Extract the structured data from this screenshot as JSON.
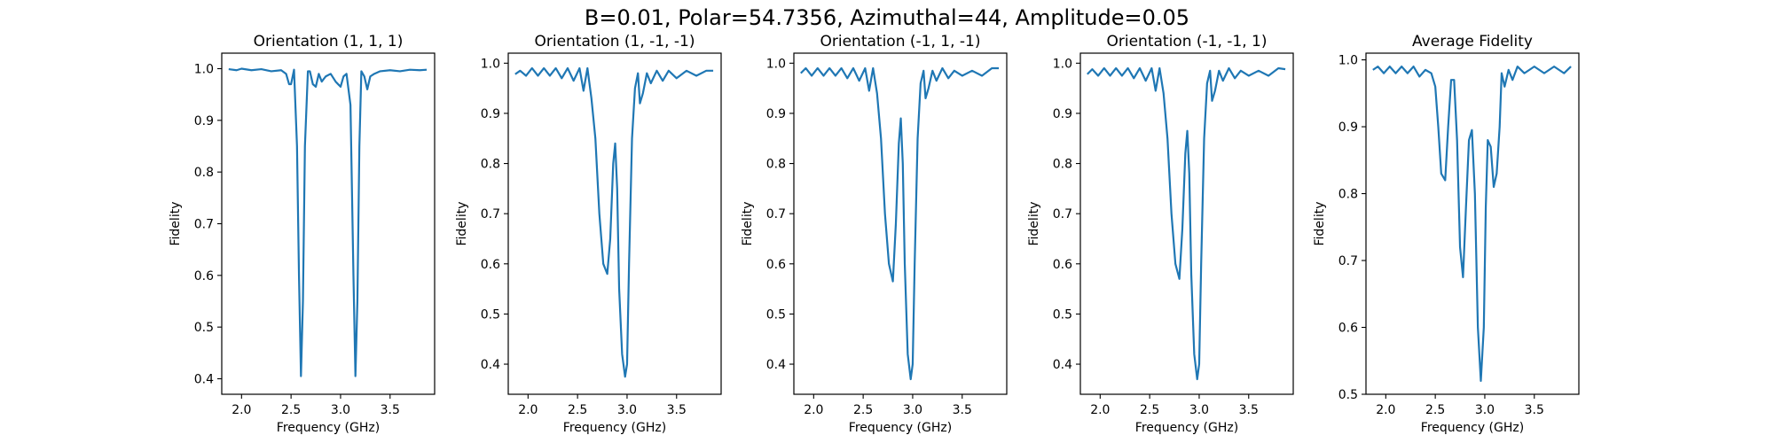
{
  "figure": {
    "suptitle": "B=0.01, Polar=54.7356, Azimuthal=44, Amplitude=0.05",
    "line_color": "#1f77b4"
  },
  "chart_data": [
    {
      "type": "line",
      "title": "Orientation (1, 1, 1)",
      "xlabel": "Frequency (GHz)",
      "ylabel": "Fidelity",
      "xlim": [
        1.8,
        3.95
      ],
      "ylim": [
        0.37,
        1.03
      ],
      "xticks": [
        2.0,
        2.5,
        3.0,
        3.5
      ],
      "xtick_labels": [
        "2.0",
        "2.5",
        "3.0",
        "3.5"
      ],
      "yticks": [
        0.4,
        0.5,
        0.6,
        0.7,
        0.8,
        0.9,
        1.0
      ],
      "ytick_labels": [
        "0.4",
        "0.5",
        "0.6",
        "0.7",
        "0.8",
        "0.9",
        "1.0"
      ],
      "series": [
        {
          "x": [
            1.87,
            1.95,
            2.0,
            2.1,
            2.2,
            2.3,
            2.4,
            2.45,
            2.48,
            2.5,
            2.53,
            2.56,
            2.58,
            2.6,
            2.62,
            2.64,
            2.67,
            2.69,
            2.72,
            2.75,
            2.78,
            2.81,
            2.85,
            2.9,
            2.95,
            3.0,
            3.03,
            3.06,
            3.1,
            3.13,
            3.15,
            3.17,
            3.19,
            3.21,
            3.24,
            3.27,
            3.3,
            3.34,
            3.4,
            3.5,
            3.6,
            3.7,
            3.8,
            3.87
          ],
          "y": [
            0.999,
            0.997,
            1.0,
            0.997,
            0.999,
            0.995,
            0.997,
            0.99,
            0.97,
            0.97,
            0.998,
            0.85,
            0.6,
            0.405,
            0.55,
            0.85,
            0.995,
            0.995,
            0.97,
            0.965,
            0.99,
            0.975,
            0.985,
            0.99,
            0.975,
            0.965,
            0.985,
            0.99,
            0.93,
            0.6,
            0.405,
            0.55,
            0.85,
            0.995,
            0.985,
            0.96,
            0.985,
            0.99,
            0.995,
            0.997,
            0.995,
            0.998,
            0.997,
            0.998
          ]
        }
      ]
    },
    {
      "type": "line",
      "title": "Orientation (1, -1, -1)",
      "xlabel": "Frequency (GHz)",
      "ylabel": "Fidelity",
      "xlim": [
        1.8,
        3.95
      ],
      "ylim": [
        0.34,
        1.02
      ],
      "xticks": [
        2.0,
        2.5,
        3.0,
        3.5
      ],
      "xtick_labels": [
        "2.0",
        "2.5",
        "3.0",
        "3.5"
      ],
      "yticks": [
        0.4,
        0.5,
        0.6,
        0.7,
        0.8,
        0.9,
        1.0
      ],
      "ytick_labels": [
        "0.4",
        "0.5",
        "0.6",
        "0.7",
        "0.8",
        "0.9",
        "1.0"
      ],
      "series": [
        {
          "x": [
            1.87,
            1.92,
            1.98,
            2.04,
            2.1,
            2.16,
            2.22,
            2.28,
            2.34,
            2.4,
            2.46,
            2.52,
            2.56,
            2.6,
            2.64,
            2.68,
            2.72,
            2.76,
            2.8,
            2.83,
            2.86,
            2.88,
            2.9,
            2.92,
            2.95,
            2.98,
            3.0,
            3.02,
            3.05,
            3.08,
            3.11,
            3.13,
            3.16,
            3.2,
            3.24,
            3.3,
            3.36,
            3.42,
            3.5,
            3.6,
            3.7,
            3.8,
            3.87
          ],
          "y": [
            0.978,
            0.985,
            0.975,
            0.99,
            0.975,
            0.99,
            0.975,
            0.99,
            0.97,
            0.99,
            0.965,
            0.99,
            0.945,
            0.99,
            0.93,
            0.85,
            0.7,
            0.6,
            0.58,
            0.65,
            0.8,
            0.84,
            0.75,
            0.55,
            0.42,
            0.375,
            0.4,
            0.6,
            0.85,
            0.95,
            0.98,
            0.92,
            0.94,
            0.98,
            0.96,
            0.985,
            0.965,
            0.985,
            0.97,
            0.985,
            0.975,
            0.985,
            0.985
          ]
        }
      ]
    },
    {
      "type": "line",
      "title": "Orientation (-1, 1, -1)",
      "xlabel": "Frequency (GHz)",
      "ylabel": "Fidelity",
      "xlim": [
        1.8,
        3.95
      ],
      "ylim": [
        0.34,
        1.02
      ],
      "xticks": [
        2.0,
        2.5,
        3.0,
        3.5
      ],
      "xtick_labels": [
        "2.0",
        "2.5",
        "3.0",
        "3.5"
      ],
      "yticks": [
        0.4,
        0.5,
        0.6,
        0.7,
        0.8,
        0.9,
        1.0
      ],
      "ytick_labels": [
        "0.4",
        "0.5",
        "0.6",
        "0.7",
        "0.8",
        "0.9",
        "1.0"
      ],
      "series": [
        {
          "x": [
            1.87,
            1.92,
            1.98,
            2.04,
            2.1,
            2.16,
            2.22,
            2.28,
            2.34,
            2.4,
            2.46,
            2.52,
            2.56,
            2.6,
            2.64,
            2.68,
            2.72,
            2.76,
            2.8,
            2.83,
            2.86,
            2.88,
            2.9,
            2.92,
            2.95,
            2.98,
            3.0,
            3.02,
            3.05,
            3.08,
            3.11,
            3.13,
            3.16,
            3.2,
            3.24,
            3.3,
            3.36,
            3.42,
            3.5,
            3.6,
            3.7,
            3.8,
            3.87
          ],
          "y": [
            0.98,
            0.99,
            0.975,
            0.99,
            0.975,
            0.99,
            0.975,
            0.99,
            0.97,
            0.99,
            0.965,
            0.99,
            0.945,
            0.99,
            0.94,
            0.85,
            0.7,
            0.6,
            0.565,
            0.68,
            0.84,
            0.89,
            0.8,
            0.6,
            0.42,
            0.37,
            0.4,
            0.6,
            0.85,
            0.96,
            0.985,
            0.93,
            0.95,
            0.985,
            0.965,
            0.99,
            0.97,
            0.985,
            0.975,
            0.985,
            0.975,
            0.99,
            0.99
          ]
        }
      ]
    },
    {
      "type": "line",
      "title": "Orientation (-1, -1, 1)",
      "xlabel": "Frequency (GHz)",
      "ylabel": "Fidelity",
      "xlim": [
        1.8,
        3.95
      ],
      "ylim": [
        0.34,
        1.02
      ],
      "xticks": [
        2.0,
        2.5,
        3.0,
        3.5
      ],
      "xtick_labels": [
        "2.0",
        "2.5",
        "3.0",
        "3.5"
      ],
      "yticks": [
        0.4,
        0.5,
        0.6,
        0.7,
        0.8,
        0.9,
        1.0
      ],
      "ytick_labels": [
        "0.4",
        "0.5",
        "0.6",
        "0.7",
        "0.8",
        "0.9",
        "1.0"
      ],
      "series": [
        {
          "x": [
            1.87,
            1.92,
            1.98,
            2.04,
            2.1,
            2.16,
            2.22,
            2.28,
            2.34,
            2.4,
            2.46,
            2.52,
            2.56,
            2.6,
            2.64,
            2.68,
            2.72,
            2.76,
            2.8,
            2.83,
            2.86,
            2.88,
            2.9,
            2.92,
            2.95,
            2.98,
            3.0,
            3.02,
            3.05,
            3.08,
            3.11,
            3.13,
            3.16,
            3.2,
            3.24,
            3.3,
            3.36,
            3.42,
            3.5,
            3.6,
            3.7,
            3.8,
            3.87
          ],
          "y": [
            0.978,
            0.988,
            0.975,
            0.99,
            0.975,
            0.99,
            0.975,
            0.99,
            0.97,
            0.99,
            0.965,
            0.99,
            0.945,
            0.99,
            0.94,
            0.85,
            0.7,
            0.6,
            0.57,
            0.67,
            0.82,
            0.865,
            0.78,
            0.58,
            0.42,
            0.37,
            0.4,
            0.6,
            0.85,
            0.96,
            0.985,
            0.925,
            0.945,
            0.985,
            0.965,
            0.99,
            0.97,
            0.985,
            0.975,
            0.985,
            0.975,
            0.99,
            0.988
          ]
        }
      ]
    },
    {
      "type": "line",
      "title": "Average Fidelity",
      "xlabel": "Frequency (GHz)",
      "ylabel": "Fidelity",
      "xlim": [
        1.8,
        3.95
      ],
      "ylim": [
        0.5,
        1.01
      ],
      "xticks": [
        2.0,
        2.5,
        3.0,
        3.5
      ],
      "xtick_labels": [
        "2.0",
        "2.5",
        "3.0",
        "3.5"
      ],
      "yticks": [
        0.5,
        0.6,
        0.7,
        0.8,
        0.9,
        1.0
      ],
      "ytick_labels": [
        "0.5",
        "0.6",
        "0.7",
        "0.8",
        "0.9",
        "1.0"
      ],
      "series": [
        {
          "x": [
            1.87,
            1.92,
            1.98,
            2.04,
            2.1,
            2.16,
            2.22,
            2.28,
            2.34,
            2.4,
            2.46,
            2.5,
            2.53,
            2.56,
            2.6,
            2.63,
            2.66,
            2.69,
            2.72,
            2.75,
            2.78,
            2.81,
            2.84,
            2.87,
            2.9,
            2.93,
            2.96,
            2.99,
            3.01,
            3.03,
            3.06,
            3.09,
            3.12,
            3.15,
            3.17,
            3.2,
            3.24,
            3.28,
            3.33,
            3.4,
            3.5,
            3.6,
            3.7,
            3.8,
            3.87
          ],
          "y": [
            0.985,
            0.99,
            0.98,
            0.99,
            0.98,
            0.99,
            0.98,
            0.99,
            0.975,
            0.985,
            0.98,
            0.96,
            0.9,
            0.83,
            0.82,
            0.9,
            0.97,
            0.97,
            0.88,
            0.72,
            0.675,
            0.78,
            0.88,
            0.895,
            0.8,
            0.6,
            0.52,
            0.6,
            0.78,
            0.88,
            0.87,
            0.81,
            0.83,
            0.9,
            0.98,
            0.96,
            0.985,
            0.97,
            0.99,
            0.98,
            0.99,
            0.98,
            0.99,
            0.98,
            0.99
          ]
        }
      ]
    }
  ]
}
